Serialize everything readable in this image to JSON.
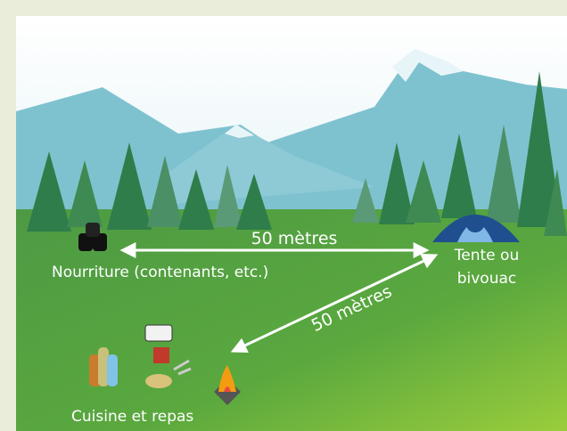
{
  "distances": {
    "food_to_tent": "50 mètres",
    "tent_to_kitchen": "50 mètres"
  },
  "places": {
    "food": "Nourriture (contenants, etc.)",
    "tent": [
      "Tente ou",
      "bivouac"
    ],
    "kitchen": "Cuisine et repas"
  }
}
